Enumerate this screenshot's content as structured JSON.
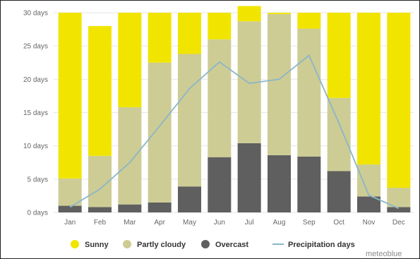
{
  "chart_data": {
    "type": "bar",
    "stacked": true,
    "categories": [
      "Jan",
      "Feb",
      "Mar",
      "Apr",
      "May",
      "Jun",
      "Jul",
      "Aug",
      "Sep",
      "Oct",
      "Nov",
      "Dec"
    ],
    "y_tick_labels": [
      "0 days",
      "5 days",
      "10 days",
      "15 days",
      "20 days",
      "25 days",
      "30 days"
    ],
    "ylim": [
      0,
      30
    ],
    "grid": true,
    "legend_position": "bottom",
    "series": [
      {
        "name": "Overcast",
        "color": "#5f5f5f",
        "values": [
          1.0,
          0.8,
          1.2,
          1.5,
          3.9,
          8.3,
          10.4,
          8.6,
          8.4,
          6.2,
          2.4,
          0.8
        ]
      },
      {
        "name": "Partly cloudy",
        "color": "#cdcc95",
        "values": [
          4.1,
          7.7,
          14.6,
          21.0,
          19.9,
          17.7,
          18.3,
          21.2,
          19.2,
          11.0,
          4.8,
          2.9
        ]
      },
      {
        "name": "Sunny",
        "color": "#f1e500",
        "values": [
          24.9,
          19.5,
          14.2,
          7.5,
          6.2,
          4.0,
          2.3,
          0.2,
          2.4,
          12.8,
          22.8,
          26.3
        ]
      }
    ],
    "line_series": {
      "name": "Precipitation days",
      "color": "#8ab6c9",
      "values": [
        0.8,
        3.5,
        7.5,
        13.0,
        18.6,
        22.6,
        19.4,
        20.0,
        23.6,
        13.4,
        2.6,
        0.6
      ]
    },
    "legend": [
      {
        "label": "Sunny",
        "color": "#f1e500",
        "marker": "dot"
      },
      {
        "label": "Partly cloudy",
        "color": "#cdcc95",
        "marker": "dot"
      },
      {
        "label": "Overcast",
        "color": "#5f5f5f",
        "marker": "dot"
      },
      {
        "label": "Precipitation days",
        "color": "#8ab6c9",
        "marker": "line"
      }
    ],
    "source": "meteoblue"
  }
}
